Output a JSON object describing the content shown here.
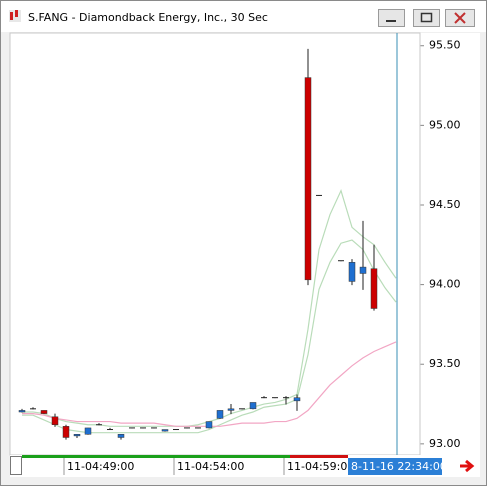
{
  "chart_data": {
    "type": "candlestick",
    "title": "S.FANG - Diamondback Energy, Inc., 30 Sec",
    "categories": [
      null,
      null,
      null,
      null,
      "11-04:49:00",
      null,
      null,
      null,
      null,
      null,
      null,
      null,
      null,
      null,
      "11-04:54:00",
      null,
      null,
      null,
      null,
      null,
      null,
      null,
      null,
      null,
      "11-04:59:00",
      null,
      null,
      null,
      null,
      null,
      null,
      null,
      null,
      null,
      null
    ],
    "open": [
      93.2,
      93.22,
      93.21,
      93.17,
      93.11,
      93.05,
      93.06,
      93.12,
      93.09,
      93.04,
      93.1,
      93.1,
      93.1,
      93.08,
      93.09,
      93.1,
      93.1,
      93.1,
      93.16,
      93.21,
      93.22,
      93.22,
      93.29,
      93.29,
      93.29,
      93.27,
      95.3,
      94.56,
      null,
      94.15,
      94.02,
      94.07,
      94.1,
      null,
      null
    ],
    "high": [
      93.22,
      93.23,
      93.21,
      93.19,
      93.12,
      93.06,
      93.1,
      93.13,
      93.1,
      93.06,
      93.1,
      93.1,
      93.1,
      93.09,
      93.09,
      93.1,
      93.1,
      93.14,
      93.21,
      93.25,
      93.22,
      93.26,
      93.3,
      93.29,
      93.3,
      93.31,
      95.48,
      94.56,
      null,
      94.15,
      94.16,
      94.4,
      94.25,
      null,
      null
    ],
    "low": [
      93.2,
      93.22,
      93.19,
      93.11,
      93.03,
      93.04,
      93.06,
      93.12,
      93.09,
      93.03,
      93.1,
      93.1,
      93.1,
      93.08,
      93.09,
      93.1,
      93.1,
      93.1,
      93.16,
      93.19,
      93.22,
      93.22,
      93.29,
      93.29,
      93.25,
      93.21,
      94.0,
      94.56,
      null,
      94.15,
      94.0,
      93.97,
      93.84,
      null,
      null
    ],
    "close": [
      93.21,
      93.22,
      93.19,
      93.12,
      93.04,
      93.06,
      93.1,
      93.12,
      93.09,
      93.06,
      93.1,
      93.1,
      93.1,
      93.09,
      93.09,
      93.1,
      93.1,
      93.14,
      93.21,
      93.22,
      93.22,
      93.26,
      93.29,
      93.29,
      93.29,
      93.29,
      94.03,
      94.56,
      null,
      94.15,
      94.14,
      94.11,
      93.85,
      null,
      null
    ],
    "up_color": "#1f6fd0",
    "down_color": "#cc0000",
    "series": [
      {
        "color": "#b9dcb9",
        "values": [
          93.2,
          93.2,
          93.19,
          93.16,
          93.14,
          93.13,
          93.12,
          93.12,
          93.11,
          93.11,
          93.11,
          93.11,
          93.11,
          93.11,
          93.11,
          93.11,
          93.12,
          93.14,
          93.16,
          93.19,
          93.21,
          93.23,
          93.25,
          93.26,
          93.28,
          93.31,
          93.72,
          94.22,
          94.44,
          94.59,
          94.36,
          94.3,
          94.25,
          94.14,
          94.04
        ]
      },
      {
        "color": "#b9dcb9",
        "values": [
          93.18,
          93.18,
          93.15,
          93.12,
          93.09,
          93.08,
          93.07,
          93.07,
          93.07,
          93.07,
          93.07,
          93.07,
          93.07,
          93.07,
          93.07,
          93.07,
          93.07,
          93.09,
          93.12,
          93.15,
          93.18,
          93.2,
          93.23,
          93.24,
          93.25,
          93.28,
          93.56,
          93.97,
          94.14,
          94.26,
          94.28,
          94.22,
          94.09,
          93.98,
          93.89
        ]
      },
      {
        "color": "#f2a6c4",
        "values": [
          93.19,
          93.19,
          93.18,
          93.16,
          93.15,
          93.14,
          93.14,
          93.14,
          93.14,
          93.13,
          93.13,
          93.13,
          93.13,
          93.12,
          93.11,
          93.11,
          93.11,
          93.11,
          93.11,
          93.12,
          93.13,
          93.13,
          93.13,
          93.14,
          93.14,
          93.16,
          93.21,
          93.29,
          93.37,
          93.43,
          93.49,
          93.54,
          93.58,
          93.61,
          93.64
        ]
      }
    ],
    "cursor_label": "8-11-16 22:34:00",
    "cursor_color": "#3a8fb5",
    "ylim": [
      92.93,
      95.58
    ],
    "yticks": [
      {
        "value": 93,
        "label": "93.00"
      },
      {
        "value": 93.5,
        "label": "93.50"
      },
      {
        "value": 94,
        "label": "94.00"
      },
      {
        "value": 94.5,
        "label": "94.50"
      },
      {
        "value": 95,
        "label": "95.00"
      },
      {
        "value": 95.5,
        "label": "95.50"
      }
    ]
  }
}
